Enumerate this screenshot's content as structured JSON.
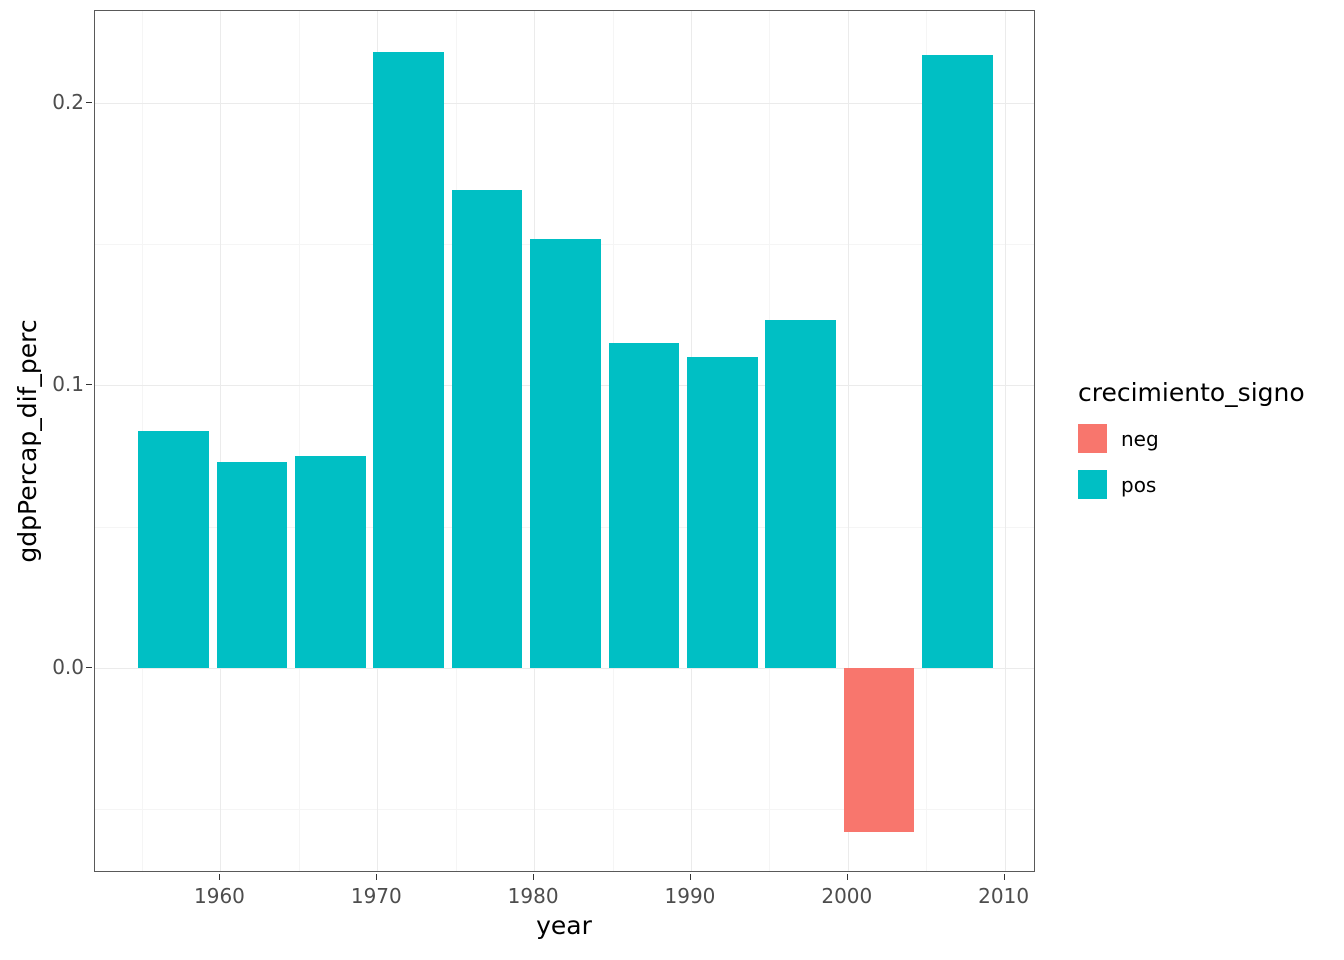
{
  "chart_data": {
    "type": "bar",
    "title": "",
    "xlabel": "year",
    "ylabel": "gdpPercap_dif_perc",
    "x": [
      1957,
      1962,
      1967,
      1972,
      1977,
      1982,
      1987,
      1992,
      1997,
      2002,
      2007
    ],
    "values": [
      0.084,
      0.073,
      0.075,
      0.218,
      0.169,
      0.152,
      0.115,
      0.11,
      0.123,
      -0.058,
      0.217
    ],
    "signs": [
      "pos",
      "pos",
      "pos",
      "pos",
      "pos",
      "pos",
      "pos",
      "pos",
      "pos",
      "neg",
      "pos"
    ],
    "bar_width_years": 4.5,
    "xlim": [
      1952,
      2012
    ],
    "ylim": [
      -0.0725,
      0.2325
    ],
    "x_ticks": [
      1960,
      1970,
      1980,
      1990,
      2000,
      2010
    ],
    "x_minor": [
      1955,
      1965,
      1975,
      1985,
      1995,
      2005
    ],
    "y_ticks": [
      "0.0",
      "0.1",
      "0.2"
    ],
    "y_tick_values": [
      0.0,
      0.1,
      0.2
    ],
    "y_minor": [
      -0.05,
      0.05,
      0.15
    ],
    "grid": true,
    "legend": {
      "title": "crecimiento_signo",
      "position": "right",
      "entries": [
        {
          "label": "neg",
          "color": "#F8766D"
        },
        {
          "label": "pos",
          "color": "#00BFC4"
        }
      ]
    },
    "colors": {
      "neg": "#F8766D",
      "pos": "#00BFC4"
    }
  }
}
